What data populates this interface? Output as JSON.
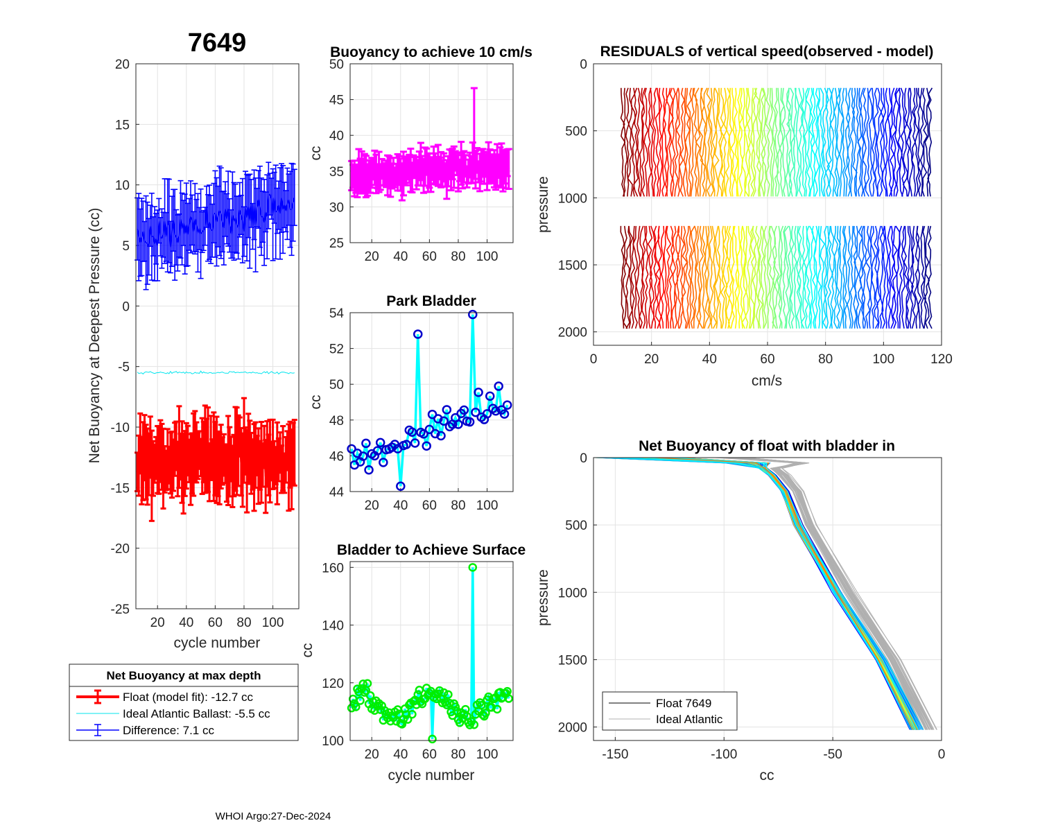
{
  "figure": {
    "float_id": "7649",
    "footer": "WHOI Argo:27-Dec-2024"
  },
  "colors": {
    "float": "#ff0000",
    "ideal": "#00e5ee",
    "difference": "#0000ff",
    "buoyancy": "#ff00ff",
    "park_marker": "#0000cc",
    "park_line": "#00ffff",
    "surface_marker": "#00ee00",
    "surface_line": "#00ffff",
    "ideal_gray": "#b0b0b0"
  },
  "legend_main": {
    "title": "Net Buoyancy at max depth",
    "float_label": "Float (model fit): -12.7 cc",
    "ideal_label": "Ideal Atlantic Ballast:  -5.5 cc",
    "diff_label": "Difference:   7.1 cc"
  },
  "legend_profile": {
    "float_label": "Float 7649",
    "ideal_label": "Ideal Atlantic"
  },
  "chart_data": [
    {
      "id": "net",
      "type": "line",
      "title": "7649",
      "xlabel": "cycle number",
      "ylabel": "Net Buoyancy at Deepest Pressure (cc)",
      "xlim": [
        5,
        118
      ],
      "ylim": [
        -25,
        20
      ],
      "xticks": [
        "20",
        "40",
        "60",
        "80",
        "100"
      ],
      "yticks": [
        "-25",
        "-20",
        "-15",
        "-10",
        "-5",
        "0",
        "5",
        "10",
        "15",
        "20"
      ],
      "series": [
        {
          "name": "Float (model fit)",
          "center": -12.7,
          "spread": 2.2,
          "err": 2.5
        },
        {
          "name": "Ideal Atlantic Ballast",
          "center": -5.5,
          "spread": 0.15,
          "err": 0
        },
        {
          "name": "Difference",
          "center": 7.1,
          "spread": 2.0,
          "err": 2.6
        }
      ]
    },
    {
      "id": "buoy",
      "type": "line",
      "title": "Buoyancy to achieve 10 cm/s",
      "xlabel": "",
      "ylabel": "cc",
      "xlim": [
        5,
        118
      ],
      "ylim": [
        25,
        50
      ],
      "xticks": [
        "20",
        "40",
        "60",
        "80",
        "100"
      ],
      "yticks": [
        "25",
        "30",
        "35",
        "40",
        "45",
        "50"
      ],
      "series": [
        {
          "name": "buoyancy",
          "center": 35,
          "spread": 1.6,
          "err": 2.2
        }
      ]
    },
    {
      "id": "park",
      "type": "line",
      "title": "Park Bladder",
      "xlabel": "",
      "ylabel": "cc",
      "xlim": [
        5,
        118
      ],
      "ylim": [
        44,
        54
      ],
      "xticks": [
        "20",
        "40",
        "60",
        "80",
        "100"
      ],
      "yticks": [
        "44",
        "46",
        "48",
        "50",
        "52",
        "54"
      ],
      "series": [
        {
          "name": "park bladder",
          "values_start": 45.7,
          "values_end": 49.2,
          "spread": 1.3
        }
      ]
    },
    {
      "id": "surf",
      "type": "line",
      "title": "Bladder to Achieve Surface",
      "xlabel": "cycle number",
      "ylabel": "cc",
      "xlim": [
        5,
        118
      ],
      "ylim": [
        100,
        162
      ],
      "xticks": [
        "20",
        "40",
        "60",
        "80",
        "100"
      ],
      "yticks": [
        "100",
        "120",
        "140",
        "160"
      ],
      "series": [
        {
          "name": "surface bladder",
          "center": 112,
          "spread": 6,
          "peak": 160
        }
      ]
    },
    {
      "id": "resid",
      "type": "line",
      "title": "RESIDUALS of vertical speed(observed - model)",
      "xlabel": "cm/s",
      "ylabel": "pressure",
      "xlim": [
        0,
        120
      ],
      "ylim": [
        0,
        2100
      ],
      "xticks": [
        "0",
        "20",
        "40",
        "60",
        "80",
        "100",
        "120"
      ],
      "yticks": [
        "0",
        "500",
        "1000",
        "1500",
        "2000"
      ],
      "profiles": 115,
      "offset_start": 10,
      "offset_end": 116,
      "bands": [
        [
          180,
          1000
        ],
        [
          1210,
          2000
        ]
      ]
    },
    {
      "id": "prof",
      "type": "line",
      "title": "Net Buoyancy of float with bladder in",
      "xlabel": "cc",
      "ylabel": "pressure",
      "xlim": [
        -160,
        0
      ],
      "ylim": [
        0,
        2100
      ],
      "xticks": [
        "-150",
        "-100",
        "-50",
        "0"
      ],
      "yticks": [
        "0",
        "500",
        "1000",
        "1500",
        "2000"
      ],
      "float_profile": {
        "surface_cc": -160,
        "knee_pressure": 130,
        "knee_cc": -78,
        "mid_pressure": 500,
        "mid_cc": -66,
        "deep_pressure": 2020,
        "deep_cc": -12
      },
      "ideal_profile": {
        "knee_cc": -72,
        "mid_cc": -60,
        "deep_cc": -6
      }
    }
  ]
}
